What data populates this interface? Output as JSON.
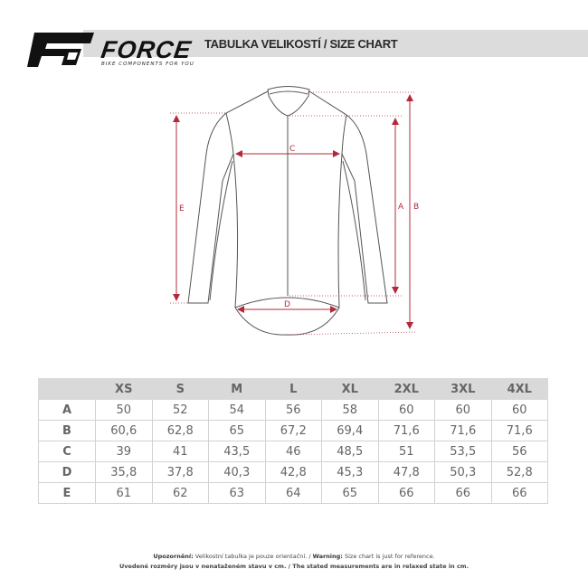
{
  "header": {
    "brand": "FORCE",
    "tagline": "BIKE COMPONENTS FOR YOU",
    "title": "TABULKA VELIKOSTÍ / SIZE CHART"
  },
  "diagram": {
    "labels": {
      "a": "A",
      "b": "B",
      "c": "C",
      "d": "D",
      "e": "E"
    },
    "accent_color": "#b3293a"
  },
  "table": {
    "columns": [
      "XS",
      "S",
      "M",
      "L",
      "XL",
      "2XL",
      "3XL",
      "4XL"
    ],
    "rows": [
      {
        "label": "A",
        "values": [
          "50",
          "52",
          "54",
          "56",
          "58",
          "60",
          "60",
          "60"
        ]
      },
      {
        "label": "B",
        "values": [
          "60,6",
          "62,8",
          "65",
          "67,2",
          "69,4",
          "71,6",
          "71,6",
          "71,6"
        ]
      },
      {
        "label": "C",
        "values": [
          "39",
          "41",
          "43,5",
          "46",
          "48,5",
          "51",
          "53,5",
          "56"
        ]
      },
      {
        "label": "D",
        "values": [
          "35,8",
          "37,8",
          "40,3",
          "42,8",
          "45,3",
          "47,8",
          "50,3",
          "52,8"
        ]
      },
      {
        "label": "E",
        "values": [
          "61",
          "62",
          "63",
          "64",
          "65",
          "66",
          "66",
          "66"
        ]
      }
    ]
  },
  "footer": {
    "warning_cz_label": "Upozornění:",
    "warning_cz_text": "Velikostní tabulka je pouze orientační. /",
    "warning_en_label": "Warning:",
    "warning_en_text": "Size chart is just for reference.",
    "line2": "Uvedené rozměry jsou v nenataženém stavu v cm. / The stated measurements are in relaxed state in cm."
  }
}
